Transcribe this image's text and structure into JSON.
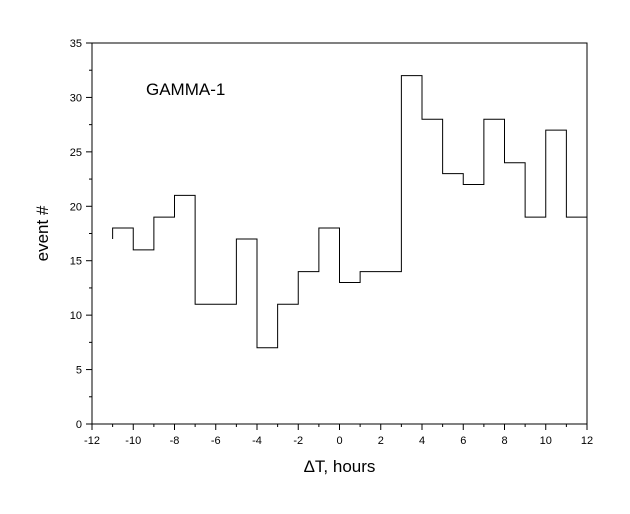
{
  "chart_data": {
    "type": "line",
    "step": true,
    "title": "",
    "annotation": "GAMMA-1",
    "xlabel": "ΔT, hours",
    "ylabel": "event #",
    "xlim": [
      -12,
      12
    ],
    "ylim": [
      0,
      35
    ],
    "xticks": [
      -12,
      -10,
      -8,
      -6,
      -4,
      -2,
      0,
      2,
      4,
      6,
      8,
      10,
      12
    ],
    "yticks": [
      0,
      5,
      10,
      15,
      20,
      25,
      30,
      35
    ],
    "xtick_labels": [
      "-12",
      "-10",
      "-8",
      "-6",
      "-4",
      "-2",
      "0",
      "2",
      "4",
      "6",
      "8",
      "10",
      "12"
    ],
    "ytick_labels": [
      "0",
      "5",
      "10",
      "15",
      "20",
      "25",
      "30",
      "35"
    ],
    "x_minor_step": 1,
    "y_minor_step": 2.5,
    "grid": false,
    "series": [
      {
        "bin_edges": [
          -11,
          -10,
          -9,
          -8,
          -7,
          -6,
          -5,
          -4,
          -3,
          -2,
          -1,
          0,
          1,
          2,
          3,
          4,
          5,
          6,
          7,
          8,
          9,
          10,
          11,
          12
        ],
        "values": [
          18,
          16,
          19,
          21,
          11,
          11,
          17,
          7,
          11,
          14,
          18,
          13,
          14,
          14,
          32,
          28,
          23,
          22,
          28,
          24,
          19,
          27,
          19
        ],
        "start_value": 17
      }
    ]
  }
}
